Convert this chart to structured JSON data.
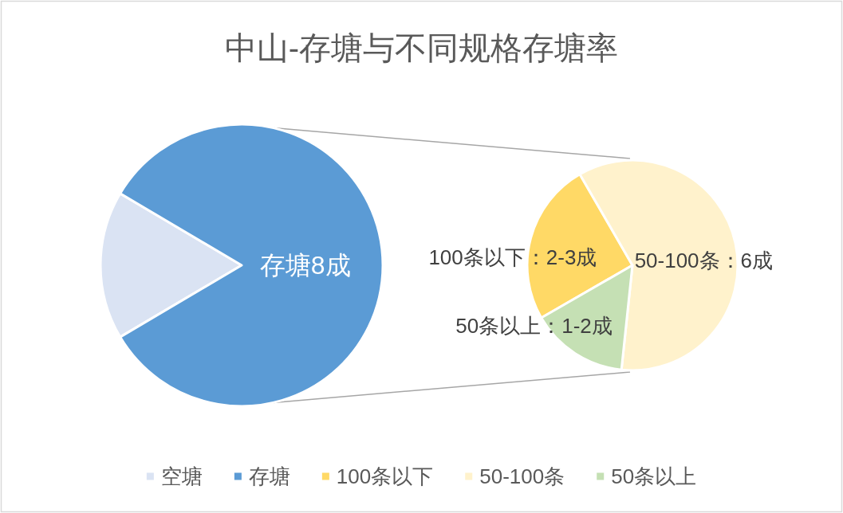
{
  "chart_data": [
    {
      "type": "pie",
      "title": "中山-存塘与不同规格存塘率",
      "categories": [
        "空塘",
        "存塘"
      ],
      "values": [
        17,
        83
      ],
      "colors": [
        "#dae3f3",
        "#5b9bd5"
      ],
      "value_labels": [
        null,
        "存塘8成"
      ],
      "legend": "bottom"
    },
    {
      "type": "pie",
      "categories": [
        "100条以下",
        "50-100条",
        "50条以上"
      ],
      "values": [
        25,
        60,
        15
      ],
      "colors": [
        "#ffd966",
        "#fff2cc",
        "#c5e0b4"
      ],
      "annotations": [
        "100条以下：2-3成",
        "50-100条：6成",
        "50条以上：1-2成"
      ],
      "legend": "bottom"
    }
  ]
}
